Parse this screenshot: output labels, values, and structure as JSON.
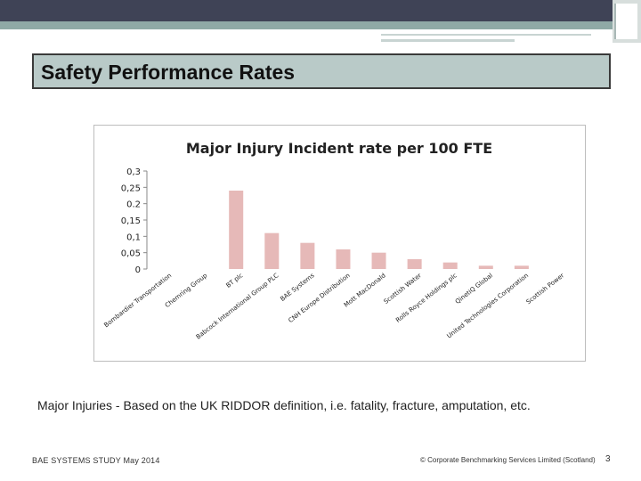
{
  "slide": {
    "title": "Safety Performance Rates",
    "note": "Major Injuries - Based on the UK RIDDOR definition, i.e. fatality, fracture, amputation, etc.",
    "footer_left": "BAE SYSTEMS STUDY May 2014",
    "footer_right": "© Corporate Benchmarking Services Limited (Scotland)",
    "page_number": "3"
  },
  "colors": {
    "bar": "#e6b9b8",
    "topbar": "#3f4356",
    "stripe": "#8fa9a6",
    "title_fill": "#b9cac8"
  },
  "chart_data": {
    "type": "bar",
    "title": "Major Injury Incident rate per 100 FTE",
    "categories": [
      "Bombardier Transportation",
      "Chemring Group",
      "BT plc",
      "Babcock International Group PLC",
      "BAE Systems",
      "CNH Europe Distribution",
      "Mott MacDonald",
      "Scottish Water",
      "Rolls Royce Holdings plc",
      "QinetiQ Global",
      "United Technologies Corporation",
      "Scottish Power"
    ],
    "values": [
      0,
      0,
      0.24,
      0.11,
      0.08,
      0.06,
      0.05,
      0.03,
      0.02,
      0.01,
      0.01,
      0
    ],
    "ylim": [
      0,
      0.3
    ],
    "y_ticks": [
      "0",
      "0,05",
      "0,1",
      "0,15",
      "0.2",
      "0,25",
      "0,3"
    ],
    "grid": false,
    "legend": "none"
  }
}
